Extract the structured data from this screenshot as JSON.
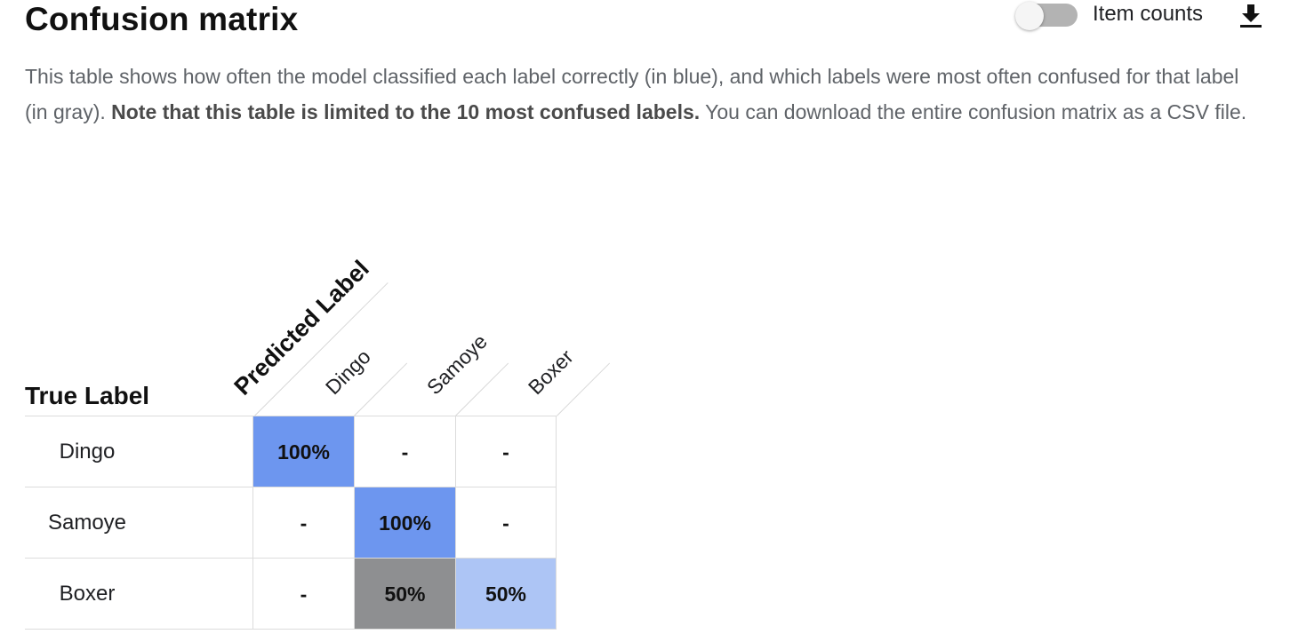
{
  "header": {
    "title": "Confusion matrix",
    "toggle_label": "Item counts",
    "toggle_on": false,
    "download_icon": "download-icon"
  },
  "description": {
    "part1": "This table shows how often the model classified each label correctly (in blue), and which labels were most often confused for that label (in gray). ",
    "bold": "Note that this table is limited to the 10 most confused labels.",
    "part2": " You can download the entire confusion matrix as a CSV file."
  },
  "matrix": {
    "row_axis_label": "True Label",
    "column_axis_label": "Predicted Label",
    "columns": [
      "Dingo",
      "Samoye",
      "Boxer"
    ],
    "rows": [
      {
        "label": "Dingo",
        "cells": [
          {
            "text": "100%",
            "kind": "correct-strong"
          },
          {
            "text": "-",
            "kind": "empty"
          },
          {
            "text": "-",
            "kind": "empty"
          }
        ]
      },
      {
        "label": "Samoye",
        "cells": [
          {
            "text": "-",
            "kind": "empty"
          },
          {
            "text": "100%",
            "kind": "correct-strong"
          },
          {
            "text": "-",
            "kind": "empty"
          }
        ]
      },
      {
        "label": "Boxer",
        "cells": [
          {
            "text": "-",
            "kind": "empty"
          },
          {
            "text": "50%",
            "kind": "confused"
          },
          {
            "text": "50%",
            "kind": "correct-light"
          }
        ]
      }
    ],
    "colors": {
      "correct-strong": "#6d96ef",
      "correct-light": "#adc5f5",
      "confused": "#8e8f91",
      "empty": "#ffffff"
    }
  }
}
